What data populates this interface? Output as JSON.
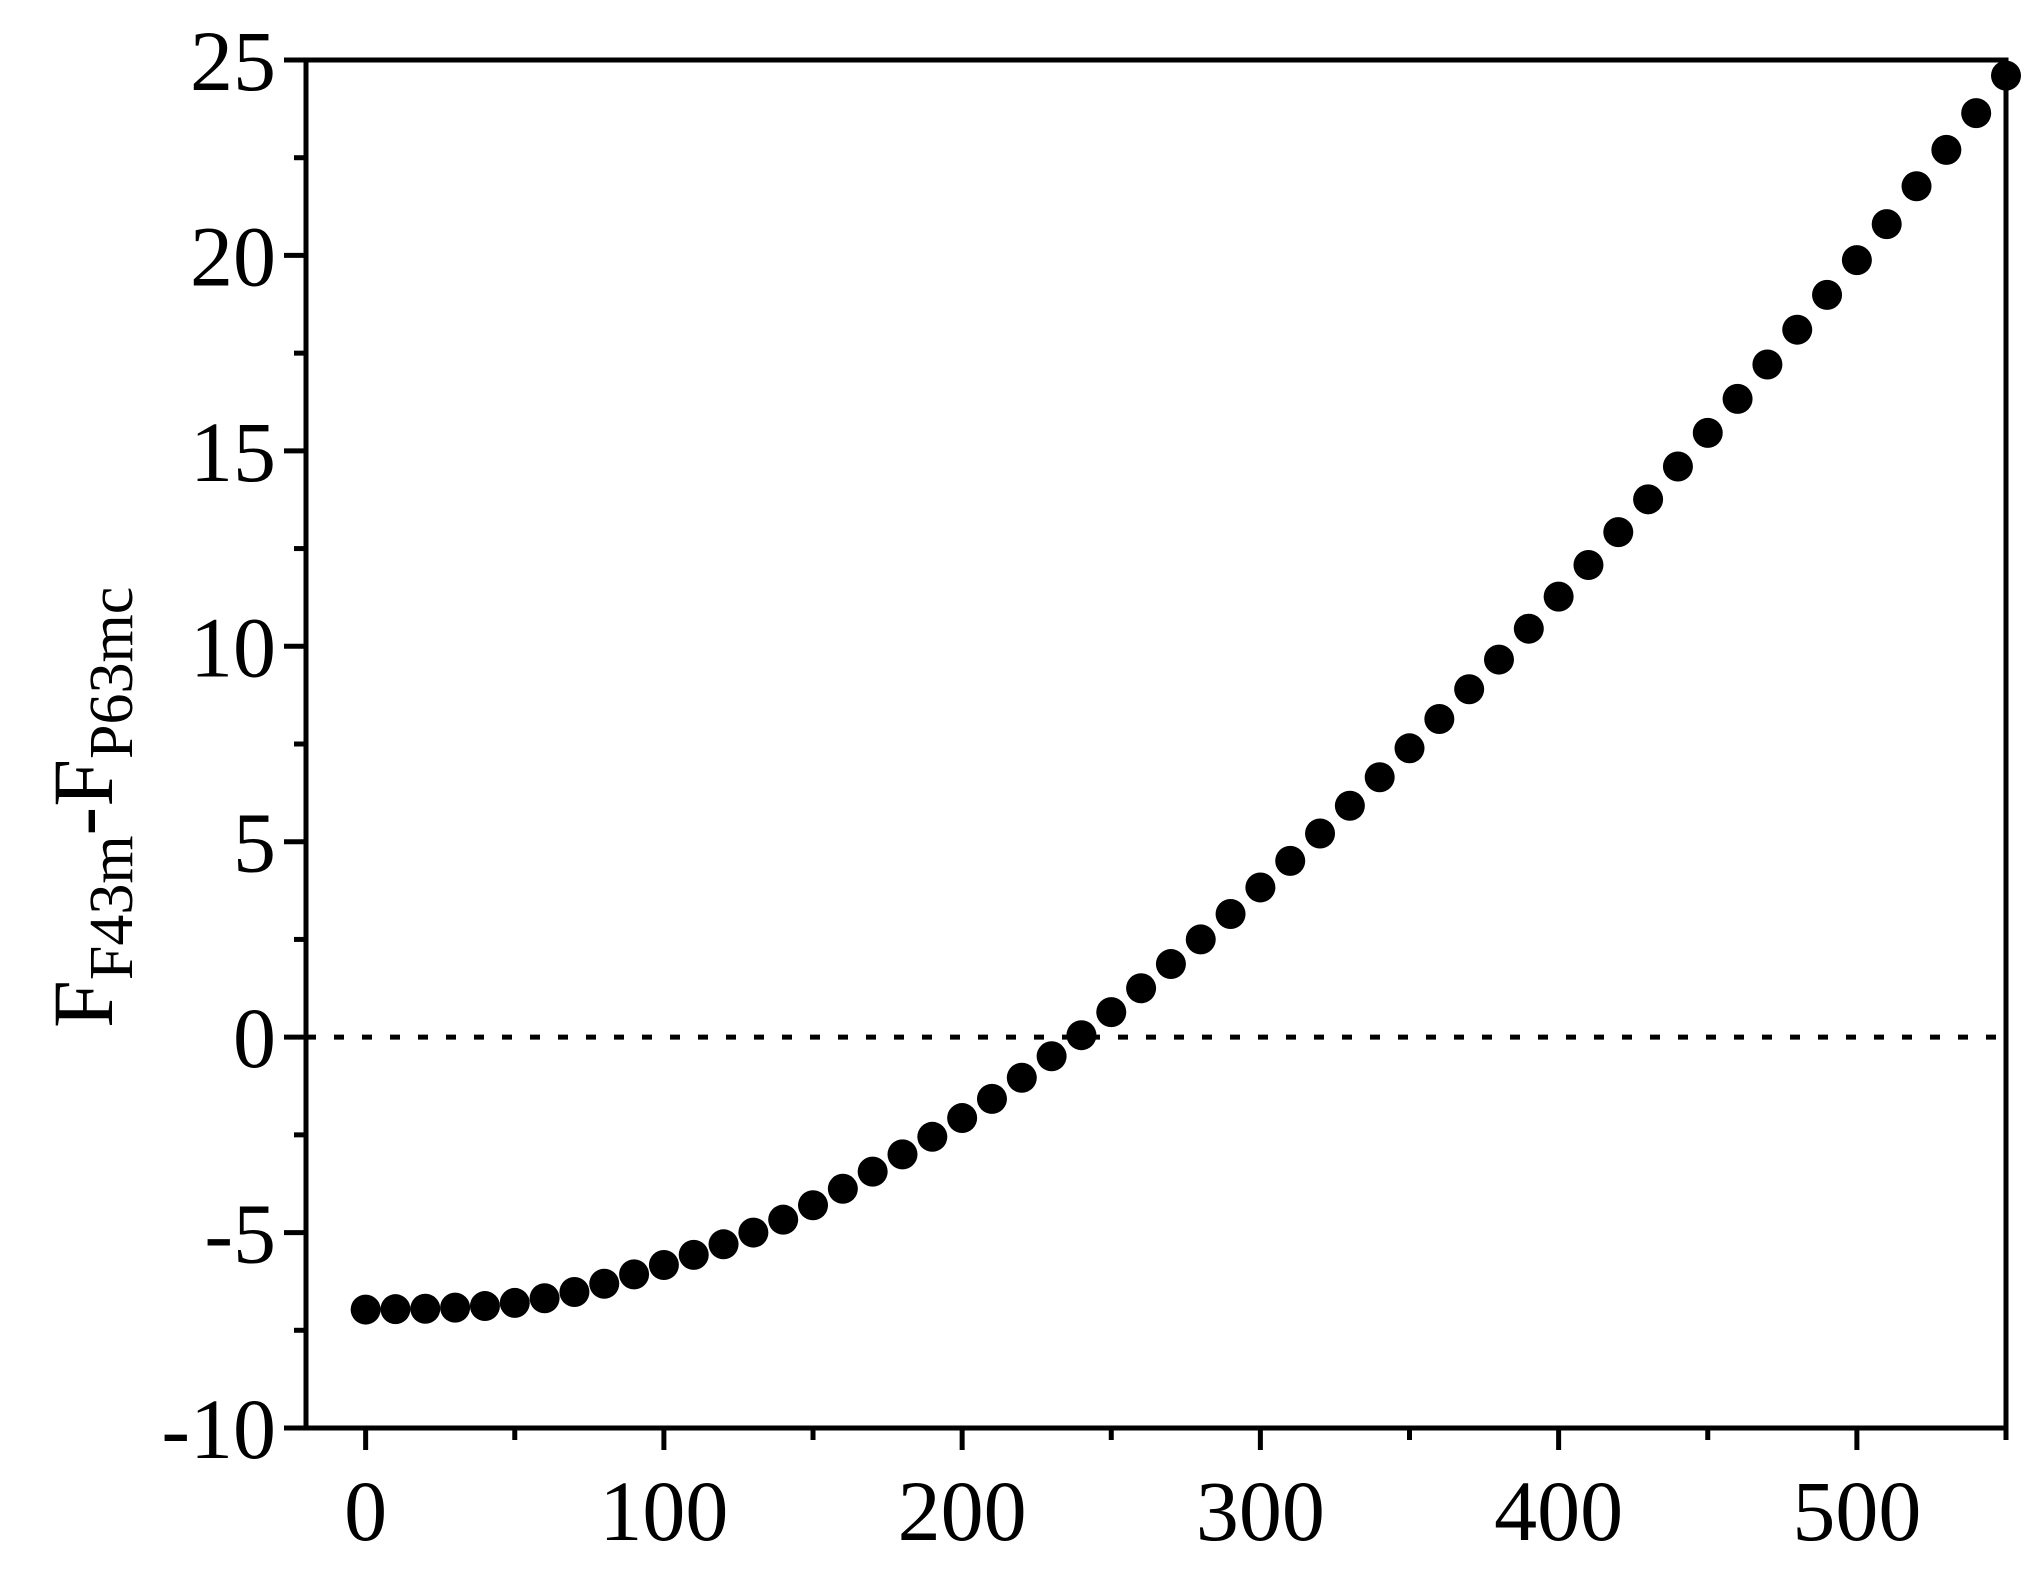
{
  "chart_data": {
    "type": "scatter",
    "title": "",
    "xlabel": "",
    "ylabel_main": "F",
    "ylabel_sub1": "F43m",
    "ylabel_mid": "-F",
    "ylabel_sub2": "P63mc",
    "xlim": [
      -20,
      550
    ],
    "ylim": [
      -10,
      25
    ],
    "x_ticks": [
      0,
      100,
      200,
      300,
      400,
      500
    ],
    "x_tick_labels": [
      "0",
      "100",
      "200",
      "300",
      "400",
      "500"
    ],
    "y_ticks": [
      -10,
      -5,
      0,
      5,
      10,
      15,
      20,
      25
    ],
    "y_tick_labels": [
      "-10",
      "-5",
      "0",
      "5",
      "10",
      "15",
      "20",
      "25"
    ],
    "grid": false,
    "reference_line": {
      "y": 0,
      "style": "dotted"
    },
    "series": [
      {
        "marker": "filled-circle",
        "color": "#000000",
        "x": [
          0,
          10,
          20,
          30,
          40,
          50,
          60,
          70,
          80,
          90,
          100,
          110,
          120,
          130,
          140,
          150,
          160,
          170,
          180,
          190,
          200,
          210,
          220,
          230,
          240,
          250,
          260,
          270,
          280,
          290,
          300,
          310,
          320,
          330,
          340,
          350,
          360,
          370,
          380,
          390,
          400,
          410,
          420,
          430,
          440,
          450,
          460,
          470,
          480,
          490,
          500,
          510,
          520,
          530,
          540,
          550
        ],
        "y": [
          -6.97,
          -6.96,
          -6.95,
          -6.92,
          -6.88,
          -6.8,
          -6.68,
          -6.52,
          -6.31,
          -6.07,
          -5.83,
          -5.57,
          -5.3,
          -5.0,
          -4.67,
          -4.3,
          -3.88,
          -3.44,
          -3.0,
          -2.55,
          -2.07,
          -1.58,
          -1.04,
          -0.49,
          0.05,
          0.64,
          1.25,
          1.87,
          2.5,
          3.15,
          3.83,
          4.51,
          5.21,
          5.92,
          6.65,
          7.39,
          8.14,
          8.9,
          9.66,
          10.45,
          11.27,
          12.08,
          12.92,
          13.76,
          14.6,
          15.46,
          16.33,
          17.21,
          18.1,
          18.99,
          19.88,
          20.8,
          21.77,
          22.7,
          23.64,
          24.6
        ]
      }
    ]
  }
}
